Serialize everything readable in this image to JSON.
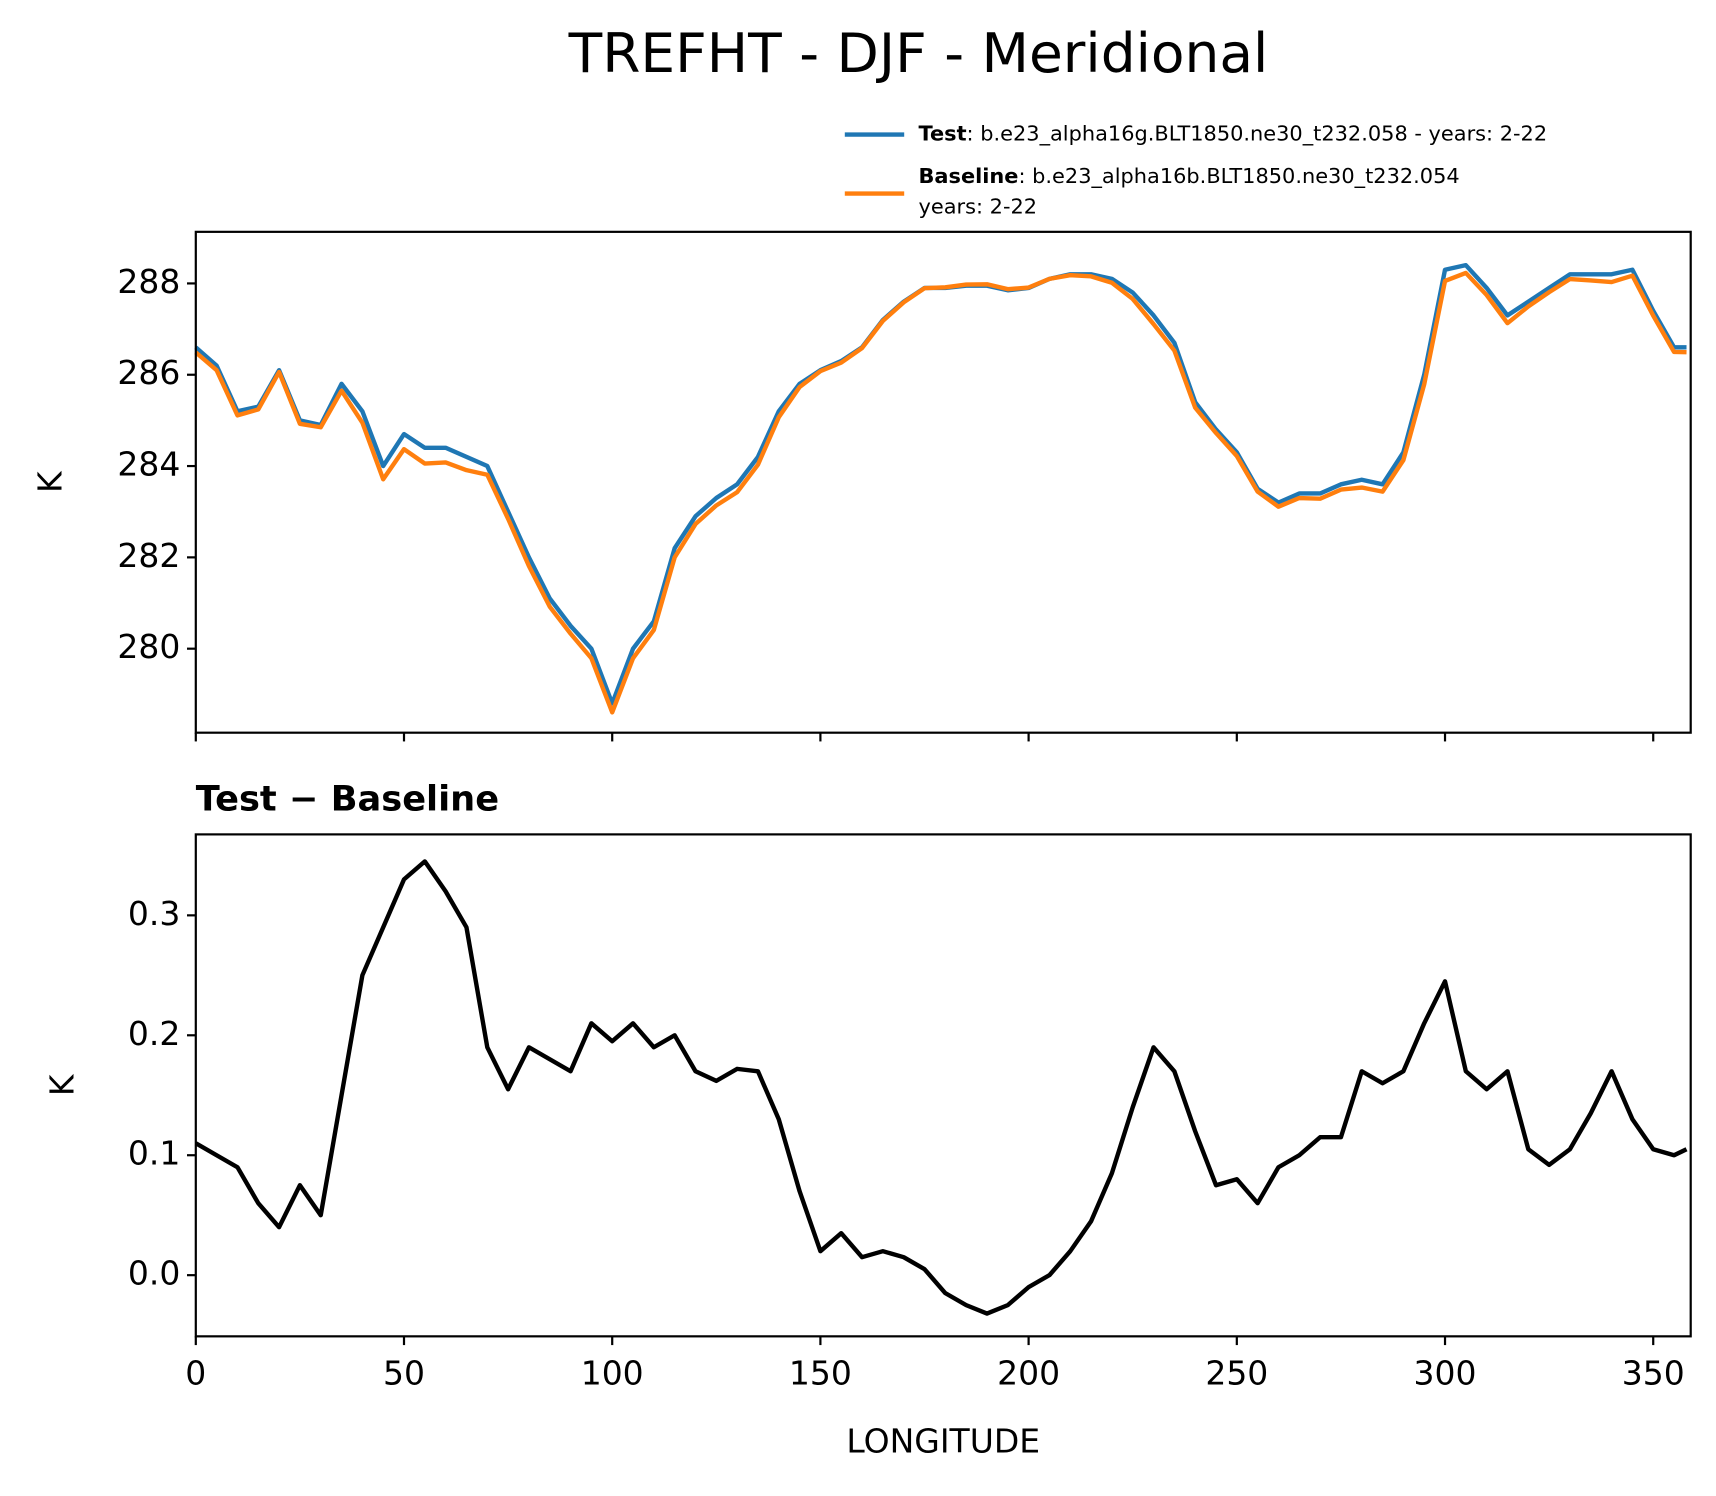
{
  "title": "TREFHT - DJF - Meridional",
  "chart_data": [
    {
      "type": "line",
      "ylabel": "K",
      "x": [
        0,
        5,
        10,
        15,
        20,
        25,
        30,
        35,
        40,
        45,
        50,
        55,
        60,
        65,
        70,
        75,
        80,
        85,
        90,
        95,
        100,
        105,
        110,
        115,
        120,
        125,
        130,
        135,
        140,
        145,
        150,
        155,
        160,
        165,
        170,
        175,
        180,
        185,
        190,
        195,
        200,
        205,
        210,
        215,
        220,
        225,
        230,
        235,
        240,
        245,
        250,
        255,
        260,
        265,
        270,
        275,
        280,
        285,
        290,
        295,
        300,
        305,
        310,
        315,
        320,
        325,
        330,
        335,
        340,
        345,
        350,
        355,
        358
      ],
      "series": [
        {
          "name": "Test",
          "legend_text": [
            " : b.e23_alpha16g.BLT1850.ne30_t232.058 - years: 2-22"
          ],
          "color": "#1f77b4",
          "values": [
            286.6,
            286.2,
            285.2,
            285.3,
            286.1,
            285.0,
            284.9,
            285.8,
            285.2,
            284.0,
            284.7,
            284.4,
            284.4,
            284.2,
            284.0,
            283.0,
            282.0,
            281.1,
            280.5,
            280.0,
            278.8,
            280.0,
            280.6,
            282.2,
            282.9,
            283.3,
            283.6,
            284.2,
            285.2,
            285.8,
            286.1,
            286.3,
            286.6,
            287.2,
            287.6,
            287.9,
            287.9,
            287.95,
            287.95,
            287.85,
            287.9,
            288.1,
            288.2,
            288.2,
            288.1,
            287.8,
            287.3,
            286.7,
            285.4,
            284.8,
            284.3,
            283.5,
            283.2,
            283.4,
            283.4,
            283.6,
            283.7,
            283.6,
            284.3,
            286.0,
            288.3,
            288.4,
            287.9,
            287.3,
            287.6,
            287.9,
            288.2,
            288.2,
            288.2,
            288.3,
            287.4,
            286.6,
            286.6
          ]
        },
        {
          "name": "Baseline",
          "legend_text": [
            " : b.e23_alpha16b.BLT1850.ne30_t232.054",
            "years: 2-22"
          ],
          "color": "#ff7f0e",
          "values": [
            286.49,
            286.1,
            285.11,
            285.24,
            286.06,
            284.925,
            284.85,
            285.65,
            284.95,
            283.71,
            284.37,
            284.055,
            284.08,
            283.91,
            283.81,
            282.845,
            281.81,
            280.92,
            280.33,
            279.79,
            278.605,
            279.79,
            280.41,
            282.0,
            282.73,
            283.138,
            283.428,
            284.03,
            285.07,
            285.73,
            286.08,
            286.265,
            286.585,
            287.18,
            287.585,
            287.895,
            287.915,
            287.975,
            287.982,
            287.875,
            287.91,
            288.1,
            288.18,
            288.155,
            288.015,
            287.66,
            287.11,
            286.53,
            285.28,
            284.725,
            284.22,
            283.44,
            283.11,
            283.3,
            283.285,
            283.485,
            283.53,
            283.44,
            284.13,
            285.79,
            288.055,
            288.23,
            287.745,
            287.13,
            287.495,
            287.808,
            288.095,
            288.065,
            288.03,
            288.17,
            287.295,
            286.5,
            286.495
          ]
        }
      ],
      "xlim": [
        0,
        359
      ],
      "xticks": [
        0,
        50,
        100,
        150,
        200,
        250,
        300,
        350
      ],
      "show_xtick_labels": false,
      "ylim": [
        278.16,
        289.13
      ],
      "yticks": [
        280,
        282,
        284,
        286,
        288
      ]
    },
    {
      "type": "line",
      "title": "Test − Baseline",
      "xlabel": "LONGITUDE",
      "ylabel": "K",
      "x": [
        0,
        5,
        10,
        15,
        20,
        25,
        30,
        35,
        40,
        45,
        50,
        55,
        60,
        65,
        70,
        75,
        80,
        85,
        90,
        95,
        100,
        105,
        110,
        115,
        120,
        125,
        130,
        135,
        140,
        145,
        150,
        155,
        160,
        165,
        170,
        175,
        180,
        185,
        190,
        195,
        200,
        205,
        210,
        215,
        220,
        225,
        230,
        235,
        240,
        245,
        250,
        255,
        260,
        265,
        270,
        275,
        280,
        285,
        290,
        295,
        300,
        305,
        310,
        315,
        320,
        325,
        330,
        335,
        340,
        345,
        350,
        355,
        358
      ],
      "series": [
        {
          "color": "#000000",
          "values": [
            0.11,
            0.1,
            0.09,
            0.06,
            0.04,
            0.075,
            0.05,
            0.15,
            0.25,
            0.29,
            0.33,
            0.345,
            0.32,
            0.29,
            0.19,
            0.155,
            0.19,
            0.18,
            0.17,
            0.21,
            0.195,
            0.21,
            0.19,
            0.2,
            0.17,
            0.162,
            0.172,
            0.17,
            0.13,
            0.07,
            0.02,
            0.035,
            0.015,
            0.02,
            0.015,
            0.005,
            -0.015,
            -0.025,
            -0.032,
            -0.025,
            -0.01,
            0.0,
            0.02,
            0.045,
            0.085,
            0.14,
            0.19,
            0.17,
            0.12,
            0.075,
            0.08,
            0.06,
            0.09,
            0.1,
            0.115,
            0.115,
            0.17,
            0.16,
            0.17,
            0.21,
            0.245,
            0.17,
            0.155,
            0.17,
            0.105,
            0.092,
            0.105,
            0.135,
            0.17,
            0.13,
            0.105,
            0.1,
            0.105
          ]
        }
      ],
      "xlim": [
        0,
        359
      ],
      "xticks": [
        0,
        50,
        100,
        150,
        200,
        250,
        300,
        350
      ],
      "show_xtick_labels": true,
      "ylim": [
        -0.051,
        0.3675
      ],
      "yticks": [
        {
          "value": 0,
          "label": "0.0"
        },
        0.1,
        0.2,
        0.3
      ]
    }
  ]
}
